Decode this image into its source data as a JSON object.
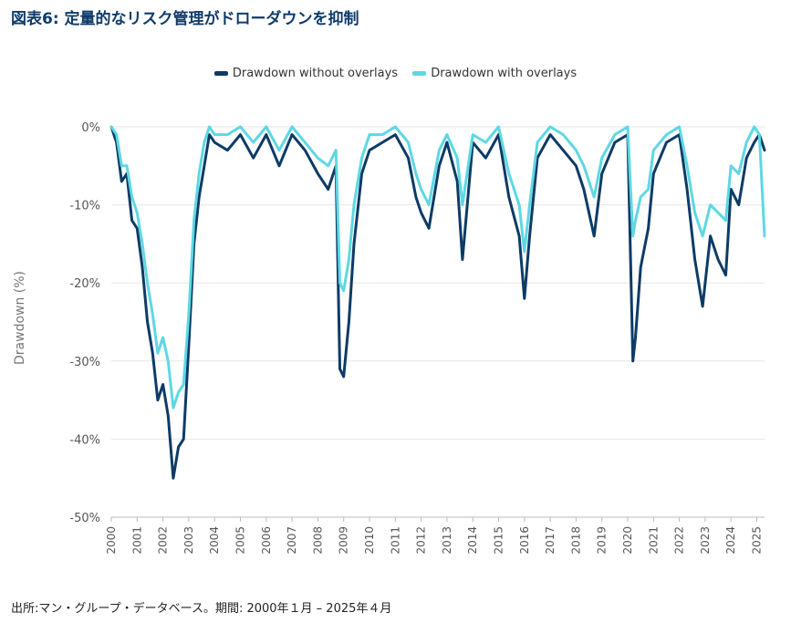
{
  "title": "図表6: 定量的なリスク管理がドローダウンを抑制",
  "source": "出所:マン・グループ・データベース。期間: 2000年１月 – 2025年４月",
  "colors": {
    "without": "#0d3b66",
    "with": "#5ed8e2",
    "grid": "#e6e6e6",
    "text": "#555555"
  },
  "chart_data": {
    "type": "line",
    "xlabel": "",
    "ylabel": "Drawdown (%)",
    "xlim": [
      2000,
      2025.3
    ],
    "ylim": [
      -50,
      0
    ],
    "yticks": [
      "0%",
      "-10%",
      "-20%",
      "-30%",
      "-40%",
      "-50%"
    ],
    "xticks": [
      "2000",
      "2001",
      "2002",
      "2003",
      "2004",
      "2005",
      "2006",
      "2007",
      "2008",
      "2009",
      "2010",
      "2011",
      "2012",
      "2013",
      "2014",
      "2015",
      "2016",
      "2017",
      "2018",
      "2019",
      "2020",
      "2021",
      "2022",
      "2023",
      "2024",
      "2025"
    ],
    "legend_position": "top-center",
    "series": [
      {
        "name": "Drawdown without overlays",
        "x": [
          2000.0,
          2000.2,
          2000.4,
          2000.6,
          2000.8,
          2001.0,
          2001.2,
          2001.4,
          2001.6,
          2001.8,
          2002.0,
          2002.2,
          2002.4,
          2002.6,
          2002.8,
          2003.0,
          2003.2,
          2003.4,
          2003.6,
          2003.8,
          2004.0,
          2004.5,
          2005.0,
          2005.5,
          2006.0,
          2006.5,
          2007.0,
          2007.5,
          2008.0,
          2008.4,
          2008.7,
          2008.85,
          2009.0,
          2009.2,
          2009.4,
          2009.7,
          2010.0,
          2010.5,
          2011.0,
          2011.5,
          2011.8,
          2012.0,
          2012.3,
          2012.7,
          2013.0,
          2013.4,
          2013.6,
          2014.0,
          2014.5,
          2015.0,
          2015.4,
          2015.8,
          2016.0,
          2016.2,
          2016.5,
          2017.0,
          2017.5,
          2018.0,
          2018.3,
          2018.7,
          2019.0,
          2019.5,
          2020.0,
          2020.2,
          2020.3,
          2020.5,
          2020.8,
          2021.0,
          2021.5,
          2022.0,
          2022.3,
          2022.6,
          2022.9,
          2023.2,
          2023.5,
          2023.8,
          2024.0,
          2024.3,
          2024.6,
          2024.9,
          2025.1,
          2025.3
        ],
        "y": [
          0,
          -2,
          -7,
          -6,
          -12,
          -13,
          -18,
          -25,
          -29,
          -35,
          -33,
          -37,
          -45,
          -41,
          -40,
          -28,
          -15,
          -9,
          -5,
          -1,
          -2,
          -3,
          -1,
          -4,
          -1,
          -5,
          -1,
          -3,
          -6,
          -8,
          -5,
          -31,
          -32,
          -25,
          -15,
          -6,
          -3,
          -2,
          -1,
          -4,
          -9,
          -11,
          -13,
          -5,
          -2,
          -7,
          -17,
          -2,
          -4,
          -1,
          -9,
          -14,
          -22,
          -14,
          -4,
          -1,
          -3,
          -5,
          -8,
          -14,
          -6,
          -2,
          -1,
          -30,
          -27,
          -18,
          -13,
          -6,
          -2,
          -1,
          -8,
          -17,
          -23,
          -14,
          -17,
          -19,
          -8,
          -10,
          -4,
          -2,
          -1,
          -3
        ]
      },
      {
        "name": "Drawdown with overlays",
        "x": [
          2000.0,
          2000.2,
          2000.4,
          2000.6,
          2000.8,
          2001.0,
          2001.2,
          2001.4,
          2001.6,
          2001.8,
          2002.0,
          2002.2,
          2002.4,
          2002.6,
          2002.8,
          2003.0,
          2003.2,
          2003.4,
          2003.6,
          2003.8,
          2004.0,
          2004.5,
          2005.0,
          2005.5,
          2006.0,
          2006.5,
          2007.0,
          2007.5,
          2008.0,
          2008.4,
          2008.7,
          2008.85,
          2009.0,
          2009.2,
          2009.4,
          2009.7,
          2010.0,
          2010.5,
          2011.0,
          2011.5,
          2011.8,
          2012.0,
          2012.3,
          2012.7,
          2013.0,
          2013.4,
          2013.6,
          2014.0,
          2014.5,
          2015.0,
          2015.4,
          2015.8,
          2016.0,
          2016.2,
          2016.5,
          2017.0,
          2017.5,
          2018.0,
          2018.3,
          2018.7,
          2019.0,
          2019.5,
          2020.0,
          2020.2,
          2020.3,
          2020.5,
          2020.8,
          2021.0,
          2021.5,
          2022.0,
          2022.3,
          2022.6,
          2022.9,
          2023.2,
          2023.5,
          2023.8,
          2024.0,
          2024.3,
          2024.6,
          2024.9,
          2025.1,
          2025.3
        ],
        "y": [
          0,
          -1,
          -5,
          -5,
          -9,
          -11,
          -15,
          -20,
          -24,
          -29,
          -27,
          -30,
          -36,
          -34,
          -33,
          -24,
          -12,
          -6,
          -2,
          0,
          -1,
          -1,
          0,
          -2,
          0,
          -3,
          0,
          -2,
          -4,
          -5,
          -3,
          -20,
          -21,
          -17,
          -10,
          -4,
          -1,
          -1,
          0,
          -2,
          -6,
          -8,
          -10,
          -3,
          -1,
          -4,
          -10,
          -1,
          -2,
          0,
          -6,
          -10,
          -16,
          -10,
          -2,
          0,
          -1,
          -3,
          -5,
          -9,
          -4,
          -1,
          0,
          -14,
          -12,
          -9,
          -8,
          -3,
          -1,
          0,
          -5,
          -11,
          -14,
          -10,
          -11,
          -12,
          -5,
          -6,
          -2,
          0,
          -1,
          -14
        ]
      }
    ]
  }
}
